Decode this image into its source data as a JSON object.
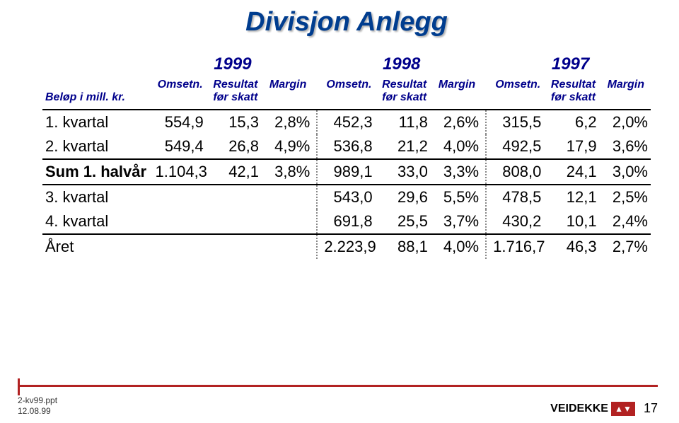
{
  "title": "Divisjon Anlegg",
  "title_color": "#003d8f",
  "years": [
    "1999",
    "1998",
    "1997"
  ],
  "col_headers_left": "Beløp i mill. kr.",
  "col_headers": [
    "Omsetn.",
    "Resultat\nfør skatt",
    "Margin"
  ],
  "rows": [
    {
      "label": "1. kvartal",
      "bold": false,
      "g1": [
        "554,9",
        "15,3",
        "2,8%"
      ],
      "g2": [
        "452,3",
        "11,8",
        "2,6%"
      ],
      "g3": [
        "315,5",
        "6,2",
        "2,0%"
      ]
    },
    {
      "label": "2. kvartal",
      "bold": false,
      "g1": [
        "549,4",
        "26,8",
        "4,9%"
      ],
      "g2": [
        "536,8",
        "21,2",
        "4,0%"
      ],
      "g3": [
        "492,5",
        "17,9",
        "3,6%"
      ]
    },
    {
      "label": "Sum 1. halvår",
      "bold": true,
      "topline": true,
      "botline": true,
      "g1": [
        "1.104,3",
        "42,1",
        "3,8%"
      ],
      "g2": [
        "989,1",
        "33,0",
        "3,3%"
      ],
      "g3": [
        "808,0",
        "24,1",
        "3,0%"
      ]
    },
    {
      "label": "3. kvartal",
      "bold": false,
      "g1": [
        "",
        "",
        ""
      ],
      "g2": [
        "543,0",
        "29,6",
        "5,5%"
      ],
      "g3": [
        "478,5",
        "12,1",
        "2,5%"
      ]
    },
    {
      "label": "4. kvartal",
      "bold": false,
      "botline": true,
      "g1": [
        "",
        "",
        ""
      ],
      "g2": [
        "691,8",
        "25,5",
        "3,7%"
      ],
      "g3": [
        "430,2",
        "10,1",
        "2,4%"
      ]
    },
    {
      "label": "Året",
      "bold": false,
      "g1": [
        "",
        "",
        ""
      ],
      "g2": [
        "2.223,9",
        "88,1",
        "4,0%"
      ],
      "g3": [
        "1.716,7",
        "46,3",
        "2,7%"
      ]
    }
  ],
  "footer": {
    "file": "2-kv99.ppt",
    "date": "12.08.99",
    "logo_text": "VEIDEKKE",
    "logo_mark": "▲▼",
    "page": "17",
    "red": "#b22222"
  },
  "colors": {
    "header_blue": "#003d8f",
    "text": "#000000"
  }
}
